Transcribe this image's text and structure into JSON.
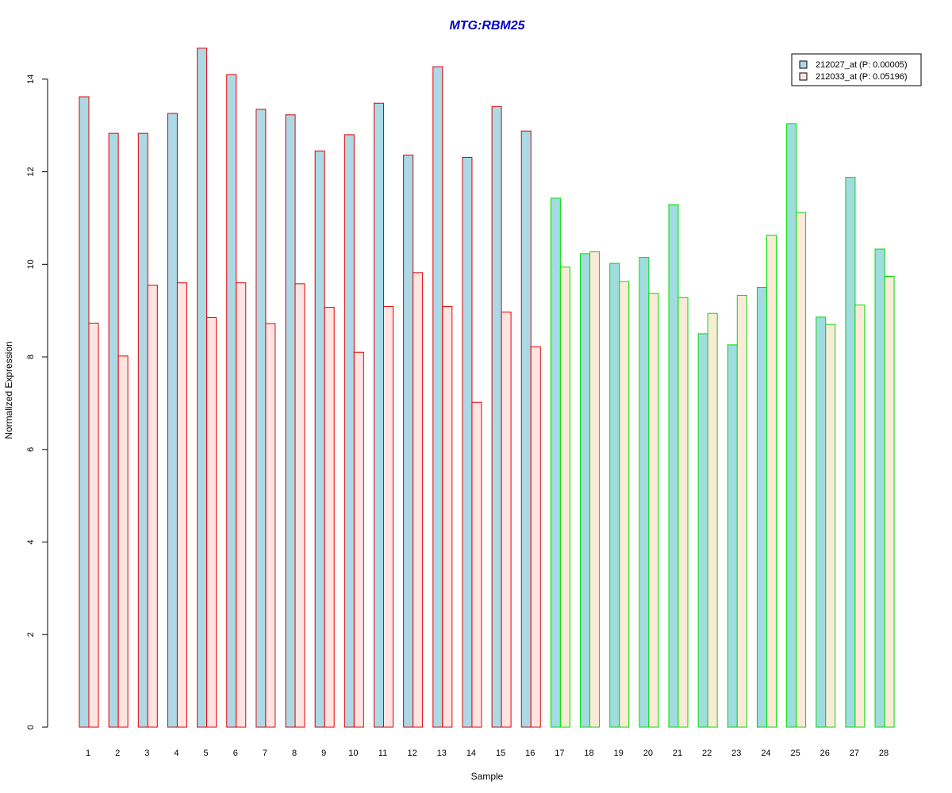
{
  "colors": {
    "title": "#0000CC",
    "series1_fill": "#ADD8E6",
    "series2_fill_group1": "#FFE4E1",
    "series2_fill_group2": "#FAEBD7",
    "group1_border": "#E00000",
    "group2_border": "#00DD00",
    "series1_fill_group2": "#A0DCE0"
  },
  "chart_data": {
    "type": "bar",
    "title": "MTG:RBM25",
    "xlabel": "Sample",
    "ylabel": "Normalized Expression",
    "ylim": [
      0,
      14.7
    ],
    "yticks": [
      0,
      2,
      4,
      6,
      8,
      10,
      12,
      14
    ],
    "grid": false,
    "legend_position": "top-right",
    "categories": [
      "1",
      "2",
      "3",
      "4",
      "5",
      "6",
      "7",
      "8",
      "9",
      "10",
      "11",
      "12",
      "13",
      "14",
      "15",
      "16",
      "17",
      "18",
      "19",
      "20",
      "21",
      "22",
      "23",
      "24",
      "25",
      "26",
      "27",
      "28"
    ],
    "group1_count": 16,
    "series": [
      {
        "name": "212027_at (P: 0.00005)",
        "values": [
          13.62,
          12.83,
          12.83,
          13.26,
          14.67,
          14.1,
          13.35,
          13.23,
          12.45,
          12.8,
          13.48,
          12.36,
          14.27,
          12.31,
          13.41,
          12.88,
          11.43,
          10.23,
          10.02,
          10.15,
          11.29,
          8.5,
          8.26,
          9.5,
          13.04,
          8.86,
          11.88,
          10.33
        ]
      },
      {
        "name": "212033_at (P: 0.05196)",
        "values": [
          8.73,
          8.02,
          9.55,
          9.6,
          8.85,
          9.6,
          8.72,
          9.58,
          9.07,
          8.1,
          9.09,
          9.82,
          9.09,
          7.02,
          8.97,
          8.22,
          9.94,
          10.27,
          9.63,
          9.37,
          9.28,
          8.94,
          9.33,
          10.63,
          11.12,
          8.7,
          9.12,
          9.74
        ]
      }
    ]
  }
}
